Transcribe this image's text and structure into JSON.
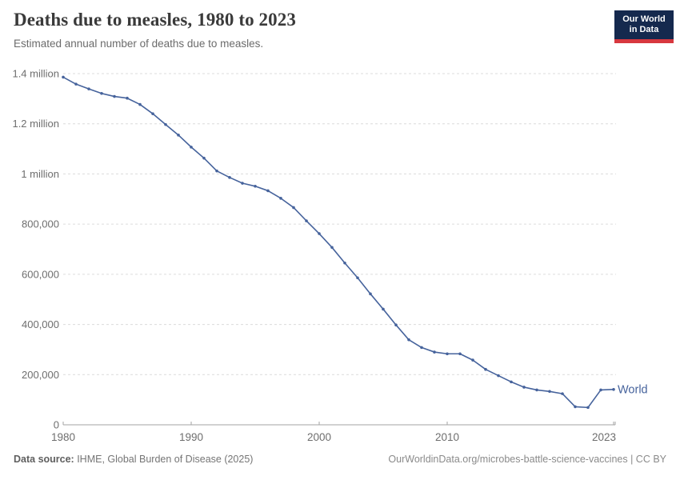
{
  "header": {
    "title": "Deaths due to measles, 1980 to 2023",
    "subtitle": "Estimated annual number of deaths due to measles.",
    "logo": {
      "line1": "Our World",
      "line2": "in Data"
    }
  },
  "chart_data": {
    "type": "line",
    "title": "Deaths due to measles, 1980 to 2023",
    "xlabel": "",
    "ylabel": "",
    "xlim": [
      1980,
      2023
    ],
    "ylim": [
      0,
      1400000
    ],
    "x_ticks": [
      1980,
      1990,
      2000,
      2010,
      2023
    ],
    "y_ticks": [
      0,
      200000,
      400000,
      600000,
      800000,
      1000000,
      1200000,
      1400000
    ],
    "y_tick_labels": [
      "0",
      "200,000",
      "400,000",
      "600,000",
      "800,000",
      "1 million",
      "1.2 million",
      "1.4 million"
    ],
    "grid": "horizontal-dashed",
    "legend_position": "end-of-line-label",
    "line_color": "#46639c",
    "series": [
      {
        "name": "World",
        "x": [
          1980,
          1981,
          1982,
          1983,
          1984,
          1985,
          1986,
          1987,
          1988,
          1989,
          1990,
          1991,
          1992,
          1993,
          1994,
          1995,
          1996,
          1997,
          1998,
          1999,
          2000,
          2001,
          2002,
          2003,
          2004,
          2005,
          2006,
          2007,
          2008,
          2009,
          2010,
          2011,
          2012,
          2013,
          2014,
          2015,
          2016,
          2017,
          2018,
          2019,
          2020,
          2021,
          2022,
          2023
        ],
        "values": [
          1386000,
          1358000,
          1339000,
          1321000,
          1309000,
          1302000,
          1277000,
          1240000,
          1197000,
          1155000,
          1107000,
          1063000,
          1012000,
          986000,
          963000,
          951000,
          933000,
          903000,
          866000,
          813000,
          762000,
          707000,
          645000,
          586000,
          522000,
          461000,
          398000,
          339000,
          308000,
          290000,
          283000,
          283000,
          258000,
          221000,
          196000,
          171000,
          150000,
          139000,
          133000,
          124000,
          72000,
          69000,
          139000,
          141000
        ]
      }
    ]
  },
  "footer": {
    "source_label": "Data source:",
    "source_text": " IHME, Global Burden of Disease (2025)",
    "attribution": "OurWorldinData.org/microbes-battle-science-vaccines | CC BY"
  },
  "colors": {
    "line": "#46639c",
    "grid": "#dcdcdc",
    "axis": "#a3a3a3",
    "title_text": "#3a3a3a",
    "muted_text": "#6e6e6e",
    "logo_background": "#15294e",
    "logo_stripe": "#d7383f"
  }
}
